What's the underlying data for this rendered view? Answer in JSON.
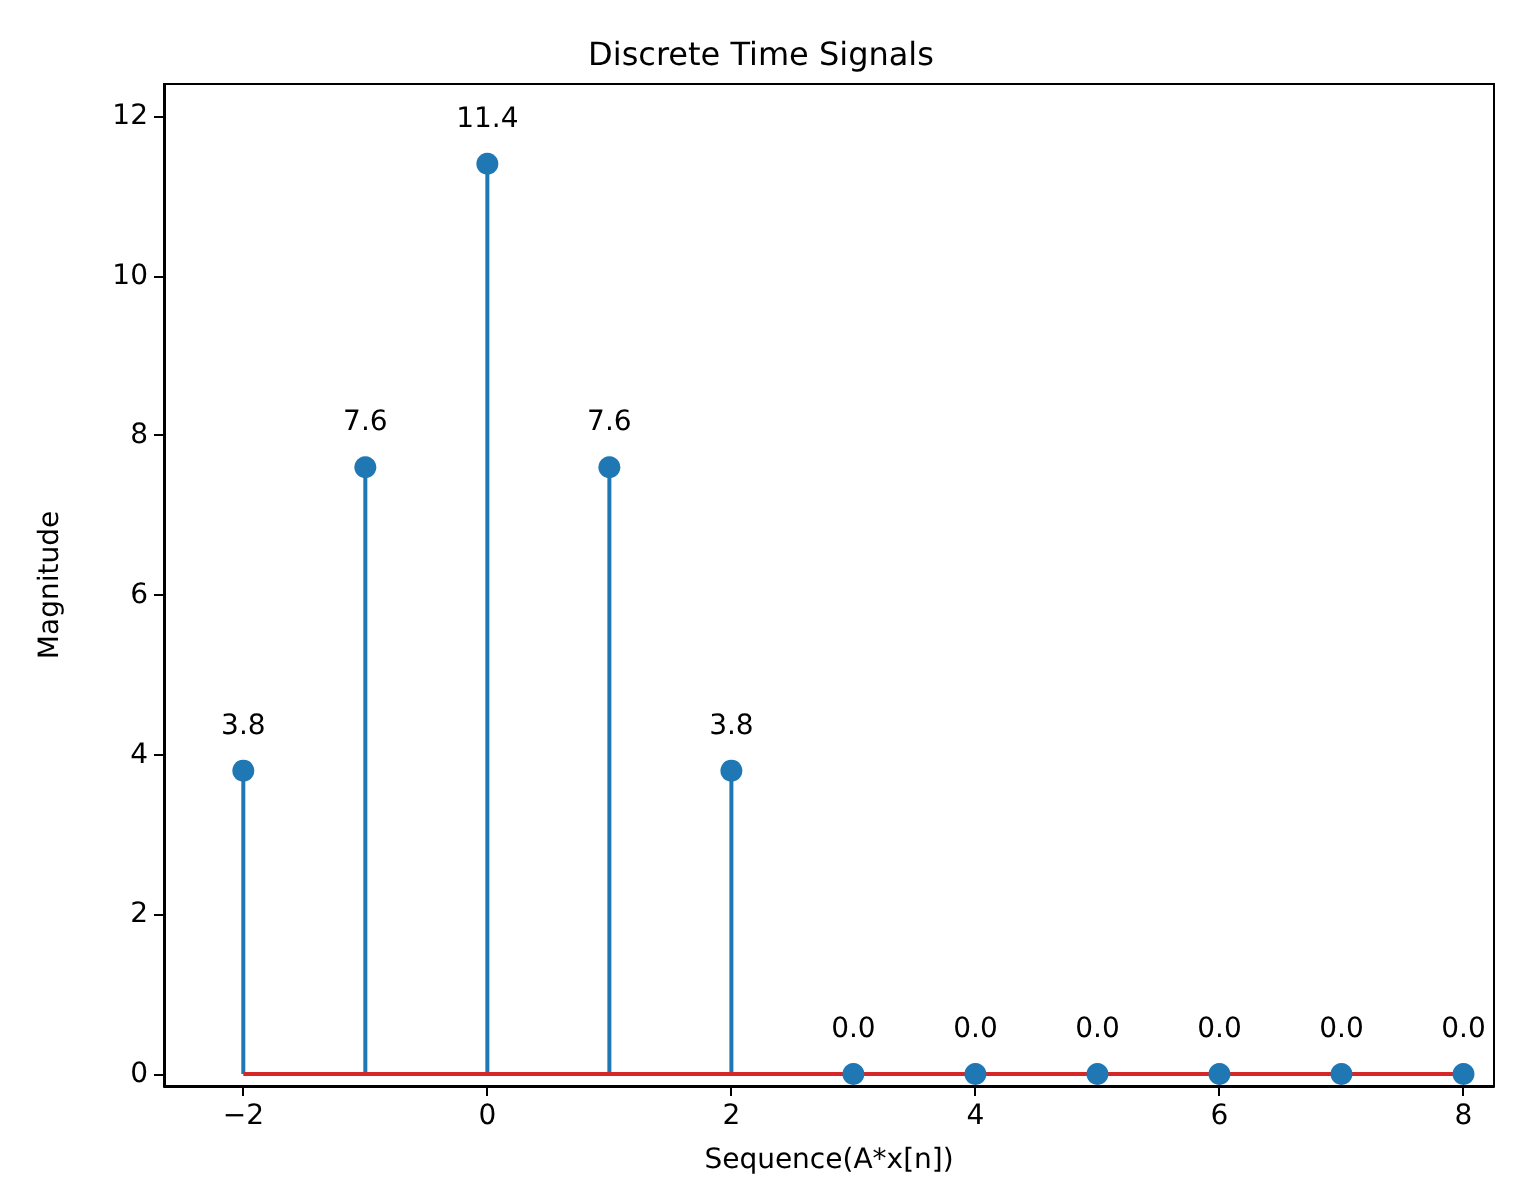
{
  "chart_data": {
    "type": "lollipop",
    "title": "Discrete Time Signals",
    "xlabel": "Sequence(A*x[n])",
    "ylabel": "Magnitude",
    "x": [
      -2,
      -1,
      0,
      1,
      2,
      3,
      4,
      5,
      6,
      7,
      8
    ],
    "series": [
      {
        "color": "#1f77b4",
        "values": [
          3.8,
          7.6,
          11.4,
          7.6,
          3.8,
          0,
          0,
          0,
          0,
          0,
          0
        ],
        "value_labels": [
          "3.8",
          "7.6",
          "11.4",
          "7.6",
          "3.8",
          "0.0",
          "0.0",
          "0.0",
          "0.0",
          "0.0",
          "0.0"
        ]
      }
    ],
    "xlim": [
      -2.65,
      8.25
    ],
    "ylim": [
      -0.15,
      12.4
    ],
    "xticks": [
      -2,
      0,
      2,
      4,
      6,
      8
    ],
    "yticks": [
      0,
      2,
      4,
      6,
      8,
      10,
      12
    ],
    "ref_lines": [
      {
        "axis": "y",
        "value": 0,
        "color": "#d62728"
      }
    ],
    "grid": false,
    "marker": "circle"
  }
}
